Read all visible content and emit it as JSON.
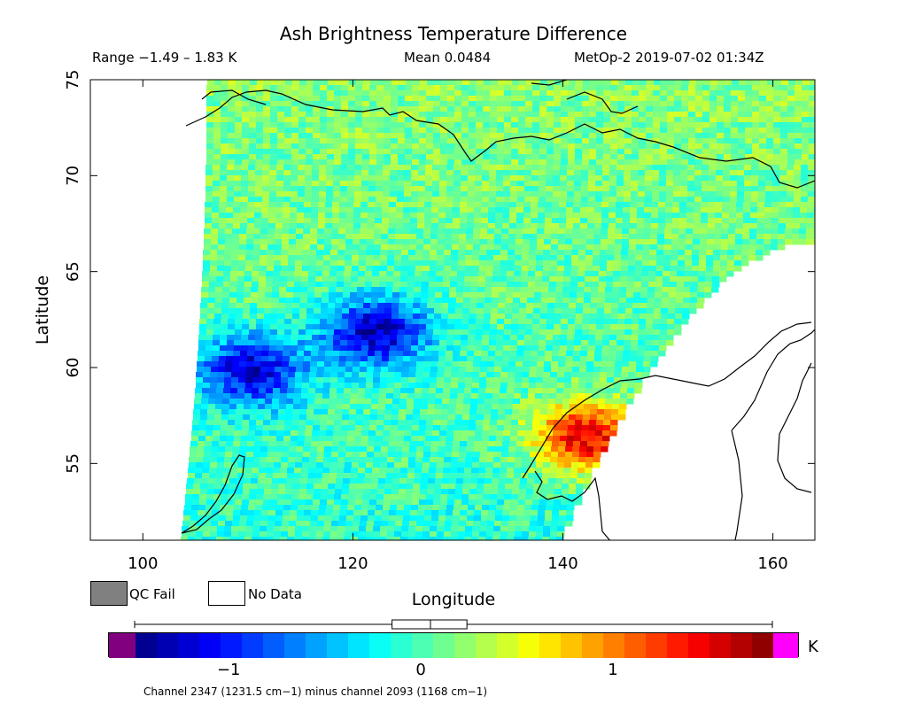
{
  "chart_data": {
    "type": "heatmap",
    "title": "Ash Brightness Temperature Difference",
    "range_text": "Range −1.49 – 1.83 K",
    "mean_text": "Mean 0.0484",
    "satellite_text": "MetOp-2 2019-07-02 01:34Z",
    "xlabel": "Longitude",
    "ylabel": "Latitude",
    "xlim": [
      95,
      164
    ],
    "ylim": [
      51,
      75
    ],
    "x_ticks": [
      100,
      120,
      140,
      160
    ],
    "y_ticks": [
      55,
      60,
      65,
      70,
      75
    ],
    "x_tick_labels": [
      "100",
      "120",
      "140",
      "160"
    ],
    "y_tick_labels": [
      "55",
      "60",
      "65",
      "70",
      "75"
    ],
    "color_scale": {
      "min": -1.49,
      "max": 1.83,
      "ticks": [
        -1,
        0,
        1
      ],
      "tick_labels": [
        "−1",
        "0",
        "1"
      ],
      "unit": "K",
      "under_color": "#800080",
      "over_color": "#ff00ff"
    },
    "distribution_box": {
      "whisker_min": -1.49,
      "q1": -0.15,
      "median": 0.05,
      "q3": 0.24,
      "whisker_max": 1.83
    },
    "features": [
      {
        "name": "high BTD region",
        "lon": 142,
        "lat": 56.5,
        "value": 1.6
      },
      {
        "name": "low BTD region",
        "lon": 110,
        "lat": 60,
        "value": -1.2
      },
      {
        "name": "low BTD patch",
        "lon": 122,
        "lat": 62,
        "value": -1.3
      }
    ],
    "channel_text": "Channel 2347 (1231.5 cm−1) minus channel 2093 (1168 cm−1)"
  },
  "legend": {
    "qc_fail_label": "QC Fail",
    "no_data_label": "No Data",
    "qc_fail_color": "#808080"
  }
}
